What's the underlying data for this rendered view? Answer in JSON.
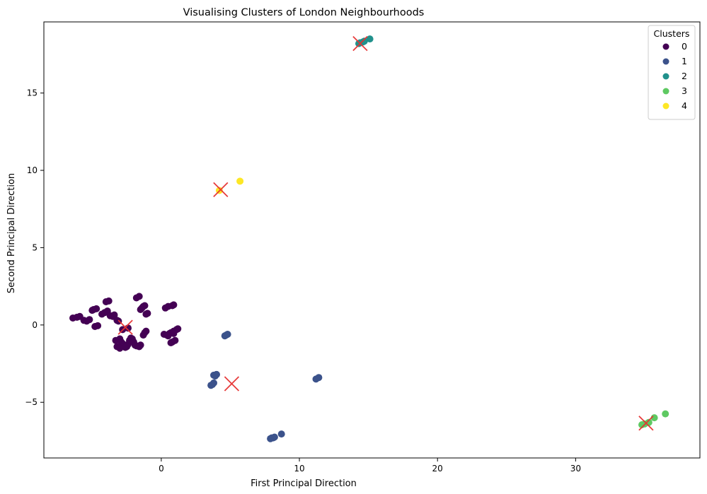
{
  "chart_data": {
    "type": "scatter",
    "title": "Visualising Clusters of London Neighbourhoods",
    "xlabel": "First Principal Direction",
    "ylabel": "Second Principal Direction",
    "xlim": [
      -8.5,
      39.0
    ],
    "ylim": [
      -8.6,
      19.6
    ],
    "xticks": [
      0,
      10,
      20,
      30
    ],
    "yticks": [
      -5,
      0,
      5,
      10,
      15
    ],
    "grid": false,
    "legend": {
      "title": "Clusters",
      "placement": "top-right",
      "entries": [
        "0",
        "1",
        "2",
        "3",
        "4"
      ]
    },
    "colors": {
      "0": "#440154",
      "1": "#3b528b",
      "2": "#21918c",
      "3": "#5ec962",
      "4": "#fde725",
      "centroid": "#e63232"
    },
    "series": [
      {
        "name": "0",
        "x": [
          -6.4,
          -6.1,
          -5.9,
          -5.6,
          -5.4,
          -5.2,
          -5.0,
          -4.9,
          -4.7,
          -4.8,
          -4.6,
          -4.3,
          -4.1,
          -3.9,
          -3.7,
          -4.0,
          -3.8,
          -3.5,
          -3.4,
          -3.2,
          -3.1,
          -3.3,
          -3.0,
          -2.9,
          -2.8,
          -2.7,
          -2.6,
          -2.5,
          -2.4,
          -2.3,
          -2.2,
          -2.1,
          -2.0,
          -1.9,
          -1.8,
          -1.6,
          -1.5,
          -1.4,
          -1.3,
          -1.2,
          -1.1,
          -1.0,
          -1.5,
          -1.3,
          -1.2,
          -1.1,
          0.2,
          0.4,
          0.6,
          0.7,
          0.9,
          1.1,
          0.3,
          0.5,
          0.8,
          0.9,
          1.2,
          0.7,
          0.8,
          1.0,
          0.5,
          0.9,
          -2.8,
          -2.4,
          -3.2,
          -3.0,
          -2.6,
          -1.8,
          -1.6
        ],
        "y": [
          0.45,
          0.5,
          0.55,
          0.3,
          0.25,
          0.35,
          0.95,
          1.0,
          1.05,
          -0.1,
          -0.05,
          0.7,
          0.8,
          0.9,
          0.6,
          1.5,
          1.55,
          0.55,
          0.65,
          0.3,
          0.25,
          -1.0,
          -0.9,
          -1.1,
          -1.2,
          -1.3,
          -1.35,
          -1.4,
          -1.25,
          -1.0,
          -0.85,
          -0.9,
          -1.1,
          -1.3,
          -1.35,
          -1.4,
          -1.3,
          1.1,
          1.2,
          1.25,
          0.7,
          0.75,
          1.0,
          -0.65,
          -0.5,
          -0.4,
          -0.6,
          -0.65,
          -0.55,
          -0.5,
          -0.4,
          -0.3,
          1.1,
          1.2,
          1.25,
          1.3,
          -0.25,
          -1.15,
          -1.1,
          -1.0,
          -0.7,
          -0.55,
          -0.3,
          -0.2,
          -1.4,
          -1.5,
          -1.45,
          1.75,
          1.85
        ],
        "marker": "circle",
        "color": "#440154"
      },
      {
        "name": "1",
        "x": [
          3.6,
          3.7,
          3.8,
          3.9,
          4.0,
          3.8,
          3.9,
          4.0,
          4.6,
          4.7,
          4.8,
          7.9,
          8.0,
          8.1,
          8.2,
          8.7,
          11.2,
          11.4
        ],
        "y": [
          -3.9,
          -3.85,
          -3.75,
          -3.3,
          -3.2,
          -3.25,
          -3.3,
          -3.2,
          -0.7,
          -0.65,
          -0.6,
          -7.35,
          -7.3,
          -7.3,
          -7.25,
          -7.05,
          -3.5,
          -3.4
        ],
        "marker": "circle",
        "color": "#3b528b"
      },
      {
        "name": "2",
        "x": [
          14.3,
          14.4,
          14.6,
          14.7,
          15.1
        ],
        "y": [
          18.2,
          18.25,
          18.3,
          18.35,
          18.5
        ],
        "marker": "circle",
        "color": "#21918c"
      },
      {
        "name": "3",
        "x": [
          34.8,
          35.0,
          35.3,
          35.7,
          36.5
        ],
        "y": [
          -6.45,
          -6.4,
          -6.3,
          -6.0,
          -5.75
        ],
        "marker": "circle",
        "color": "#5ec962"
      },
      {
        "name": "4",
        "x": [
          4.2,
          5.7
        ],
        "y": [
          8.7,
          9.3
        ],
        "marker": "circle",
        "color": "#fde725"
      }
    ],
    "centroids": {
      "x": [
        -2.6,
        5.1,
        14.4,
        35.1,
        4.3
      ],
      "y": [
        -0.15,
        -3.8,
        18.2,
        -6.35,
        8.75
      ],
      "marker": "x",
      "color": "#e63232"
    }
  }
}
